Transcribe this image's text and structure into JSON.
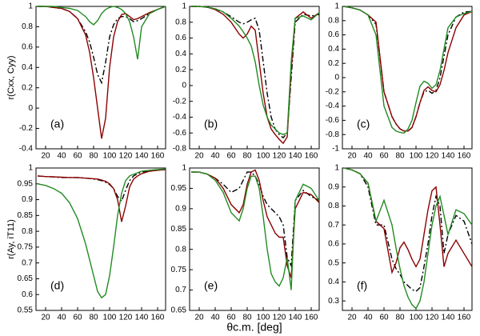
{
  "xlabel": "θc.m. [deg]",
  "chart_data": [
    {
      "type": "line",
      "label": "(a)",
      "ylabel": "r(Cxx, Cyy)",
      "x": [
        10,
        20,
        30,
        40,
        50,
        60,
        70,
        75,
        80,
        85,
        90,
        95,
        100,
        105,
        110,
        115,
        120,
        125,
        130,
        135,
        140,
        150,
        160,
        170
      ],
      "xlim": [
        8,
        170
      ],
      "xticks": [
        20,
        40,
        60,
        80,
        100,
        120,
        140,
        160
      ],
      "ylim": [
        -0.4,
        1
      ],
      "yticks": [
        -0.4,
        -0.2,
        0,
        0.2,
        0.4,
        0.6,
        0.8,
        1
      ],
      "series": [
        {
          "color": "#000000",
          "style": "dash-dot",
          "values": [
            1,
            1,
            0.99,
            0.98,
            0.95,
            0.88,
            0.75,
            0.65,
            0.5,
            0.33,
            0.25,
            0.45,
            0.7,
            0.82,
            0.88,
            0.9,
            0.9,
            0.88,
            0.85,
            0.86,
            0.88,
            0.93,
            0.97,
            1
          ]
        },
        {
          "color": "#8b0000",
          "style": "solid",
          "values": [
            1,
            1,
            0.99,
            0.98,
            0.95,
            0.88,
            0.72,
            0.55,
            0.3,
            0.0,
            -0.3,
            -0.1,
            0.4,
            0.7,
            0.85,
            0.92,
            0.93,
            0.9,
            0.87,
            0.88,
            0.9,
            0.94,
            0.97,
            1
          ]
        },
        {
          "color": "#228b22",
          "style": "solid",
          "values": [
            1,
            1,
            1,
            0.99,
            0.98,
            0.96,
            0.9,
            0.85,
            0.82,
            0.86,
            0.93,
            0.97,
            0.99,
            1,
            0.99,
            0.97,
            0.93,
            0.85,
            0.7,
            0.48,
            0.8,
            0.93,
            0.97,
            1
          ]
        }
      ]
    },
    {
      "type": "line",
      "label": "(b)",
      "x": [
        10,
        20,
        30,
        40,
        50,
        60,
        70,
        75,
        80,
        85,
        90,
        95,
        100,
        105,
        110,
        115,
        120,
        125,
        130,
        135,
        140,
        150,
        160,
        170
      ],
      "xlim": [
        8,
        170
      ],
      "xticks": [
        20,
        40,
        60,
        80,
        100,
        120,
        140,
        160
      ],
      "ylim": [
        -0.8,
        1
      ],
      "yticks": [
        -0.8,
        -0.6,
        -0.4,
        -0.2,
        0,
        0.2,
        0.4,
        0.6,
        0.8,
        1
      ],
      "series": [
        {
          "color": "#000000",
          "style": "dash-dot",
          "values": [
            1,
            1,
            0.99,
            0.97,
            0.93,
            0.87,
            0.8,
            0.78,
            0.8,
            0.83,
            0.85,
            0.7,
            0.3,
            -0.1,
            -0.4,
            -0.55,
            -0.62,
            -0.66,
            -0.6,
            0.1,
            0.8,
            0.9,
            0.88,
            0.9
          ]
        },
        {
          "color": "#8b0000",
          "style": "solid",
          "values": [
            1,
            1,
            0.99,
            0.96,
            0.9,
            0.8,
            0.65,
            0.6,
            0.65,
            0.75,
            0.7,
            0.3,
            -0.1,
            -0.4,
            -0.55,
            -0.62,
            -0.68,
            -0.73,
            -0.65,
            0.2,
            0.85,
            0.93,
            0.85,
            0.92
          ]
        },
        {
          "color": "#228b22",
          "style": "solid",
          "values": [
            1,
            1,
            0.99,
            0.97,
            0.93,
            0.85,
            0.75,
            0.68,
            0.6,
            0.5,
            0.3,
            0.0,
            -0.25,
            -0.4,
            -0.5,
            -0.55,
            -0.6,
            -0.62,
            -0.6,
            0.3,
            0.85,
            0.88,
            0.83,
            0.92
          ]
        }
      ]
    },
    {
      "type": "line",
      "label": "(c)",
      "x": [
        10,
        20,
        30,
        40,
        50,
        60,
        70,
        75,
        80,
        85,
        90,
        95,
        100,
        105,
        110,
        115,
        120,
        125,
        130,
        135,
        140,
        150,
        160,
        170
      ],
      "xlim": [
        8,
        170
      ],
      "xticks": [
        20,
        40,
        60,
        80,
        100,
        120,
        140,
        160
      ],
      "ylim": [
        -1,
        1
      ],
      "yticks": [
        -1,
        -0.8,
        -0.6,
        -0.4,
        -0.2,
        0,
        0.2,
        0.4,
        0.6,
        0.8,
        1
      ],
      "series": [
        {
          "color": "#000000",
          "style": "dash-dot",
          "values": [
            1,
            0.98,
            0.95,
            0.88,
            0.75,
            -0.2,
            -0.55,
            -0.65,
            -0.72,
            -0.75,
            -0.75,
            -0.7,
            -0.55,
            -0.35,
            -0.2,
            -0.18,
            -0.22,
            -0.18,
            0,
            0.3,
            0.6,
            0.85,
            0.92,
            0.93
          ]
        },
        {
          "color": "#8b0000",
          "style": "solid",
          "values": [
            1,
            0.98,
            0.95,
            0.88,
            0.78,
            -0.2,
            -0.55,
            -0.65,
            -0.72,
            -0.75,
            -0.75,
            -0.7,
            -0.55,
            -0.35,
            -0.18,
            -0.13,
            -0.18,
            -0.2,
            -0.1,
            0.1,
            0.35,
            0.7,
            0.88,
            0.93
          ]
        },
        {
          "color": "#228b22",
          "style": "solid",
          "values": [
            1,
            0.98,
            0.95,
            0.88,
            0.6,
            -0.4,
            -0.7,
            -0.75,
            -0.77,
            -0.78,
            -0.72,
            -0.6,
            -0.35,
            -0.12,
            -0.05,
            -0.08,
            -0.15,
            -0.1,
            0.1,
            0.4,
            0.7,
            0.85,
            0.9,
            0.93
          ]
        }
      ]
    },
    {
      "type": "line",
      "label": "(d)",
      "ylabel": "r(Ay, iT11)",
      "x": [
        10,
        20,
        30,
        40,
        50,
        60,
        70,
        75,
        80,
        85,
        90,
        95,
        100,
        105,
        110,
        115,
        120,
        125,
        130,
        135,
        140,
        150,
        160,
        170
      ],
      "xlim": [
        8,
        170
      ],
      "xticks": [
        20,
        40,
        60,
        80,
        100,
        120,
        140,
        160
      ],
      "ylim": [
        0.55,
        1
      ],
      "yticks": [
        0.55,
        0.6,
        0.65,
        0.7,
        0.75,
        0.8,
        0.85,
        0.9,
        0.95,
        1
      ],
      "series": [
        {
          "color": "#000000",
          "style": "dash-dot",
          "values": [
            0.975,
            0.973,
            0.972,
            0.97,
            0.97,
            0.97,
            0.968,
            0.967,
            0.965,
            0.963,
            0.96,
            0.955,
            0.948,
            0.935,
            0.91,
            0.895,
            0.93,
            0.96,
            0.975,
            0.982,
            0.987,
            0.99,
            0.993,
            0.995
          ]
        },
        {
          "color": "#8b0000",
          "style": "solid",
          "values": [
            0.975,
            0.973,
            0.972,
            0.971,
            0.97,
            0.97,
            0.968,
            0.967,
            0.966,
            0.965,
            0.962,
            0.958,
            0.95,
            0.935,
            0.9,
            0.83,
            0.88,
            0.94,
            0.965,
            0.975,
            0.982,
            0.99,
            0.993,
            0.995
          ]
        },
        {
          "color": "#228b22",
          "style": "solid",
          "values": [
            0.95,
            0.945,
            0.935,
            0.92,
            0.89,
            0.84,
            0.76,
            0.71,
            0.66,
            0.61,
            0.59,
            0.6,
            0.66,
            0.75,
            0.85,
            0.92,
            0.96,
            0.975,
            0.98,
            0.985,
            0.99,
            0.993,
            0.995,
            0.997
          ]
        }
      ]
    },
    {
      "type": "line",
      "label": "(e)",
      "x": [
        10,
        20,
        30,
        40,
        50,
        60,
        70,
        75,
        80,
        85,
        90,
        95,
        100,
        105,
        110,
        115,
        120,
        125,
        130,
        135,
        140,
        150,
        160,
        170
      ],
      "xlim": [
        8,
        170
      ],
      "xticks": [
        20,
        40,
        60,
        80,
        100,
        120,
        140,
        160
      ],
      "ylim": [
        0.65,
        1
      ],
      "yticks": [
        0.65,
        0.7,
        0.75,
        0.8,
        0.85,
        0.9,
        0.95,
        1
      ],
      "series": [
        {
          "color": "#000000",
          "style": "dash-dot",
          "values": [
            0.99,
            0.99,
            0.985,
            0.975,
            0.96,
            0.94,
            0.95,
            0.97,
            0.99,
            0.99,
            0.98,
            0.96,
            0.93,
            0.91,
            0.9,
            0.89,
            0.88,
            0.86,
            0.78,
            0.76,
            0.92,
            0.945,
            0.93,
            0.92
          ]
        },
        {
          "color": "#8b0000",
          "style": "solid",
          "values": [
            0.99,
            0.99,
            0.985,
            0.975,
            0.95,
            0.91,
            0.89,
            0.91,
            0.96,
            0.99,
            0.995,
            0.97,
            0.92,
            0.88,
            0.86,
            0.84,
            0.83,
            0.83,
            0.76,
            0.73,
            0.9,
            0.94,
            0.935,
            0.915
          ]
        },
        {
          "color": "#228b22",
          "style": "solid",
          "values": [
            0.99,
            0.99,
            0.985,
            0.97,
            0.94,
            0.89,
            0.87,
            0.9,
            0.95,
            0.98,
            0.98,
            0.95,
            0.88,
            0.8,
            0.74,
            0.72,
            0.71,
            0.73,
            0.78,
            0.7,
            0.92,
            0.96,
            0.95,
            0.92
          ]
        }
      ]
    },
    {
      "type": "line",
      "label": "(f)",
      "x": [
        10,
        20,
        30,
        40,
        50,
        60,
        70,
        75,
        80,
        85,
        90,
        95,
        100,
        105,
        110,
        115,
        120,
        125,
        130,
        135,
        140,
        150,
        160,
        170
      ],
      "xlim": [
        8,
        170
      ],
      "xticks": [
        20,
        40,
        60,
        80,
        100,
        120,
        140,
        160
      ],
      "ylim": [
        0.25,
        1
      ],
      "yticks": [
        0.3,
        0.4,
        0.5,
        0.6,
        0.7,
        0.8,
        0.9,
        1
      ],
      "series": [
        {
          "color": "#000000",
          "style": "dash-dot",
          "values": [
            1,
            0.99,
            0.97,
            0.9,
            0.7,
            0.7,
            0.52,
            0.47,
            0.44,
            0.4,
            0.38,
            0.36,
            0.35,
            0.37,
            0.48,
            0.6,
            0.75,
            0.85,
            0.8,
            0.55,
            0.65,
            0.75,
            0.72,
            0.6
          ]
        },
        {
          "color": "#8b0000",
          "style": "solid",
          "values": [
            1,
            0.99,
            0.97,
            0.92,
            0.72,
            0.68,
            0.45,
            0.5,
            0.58,
            0.61,
            0.57,
            0.52,
            0.48,
            0.52,
            0.65,
            0.78,
            0.88,
            0.9,
            0.7,
            0.48,
            0.55,
            0.62,
            0.55,
            0.48
          ]
        },
        {
          "color": "#228b22",
          "style": "solid",
          "values": [
            1,
            0.99,
            0.97,
            0.92,
            0.72,
            0.83,
            0.7,
            0.58,
            0.47,
            0.38,
            0.32,
            0.28,
            0.26,
            0.3,
            0.4,
            0.55,
            0.7,
            0.8,
            0.85,
            0.75,
            0.65,
            0.78,
            0.76,
            0.7
          ]
        }
      ]
    }
  ]
}
